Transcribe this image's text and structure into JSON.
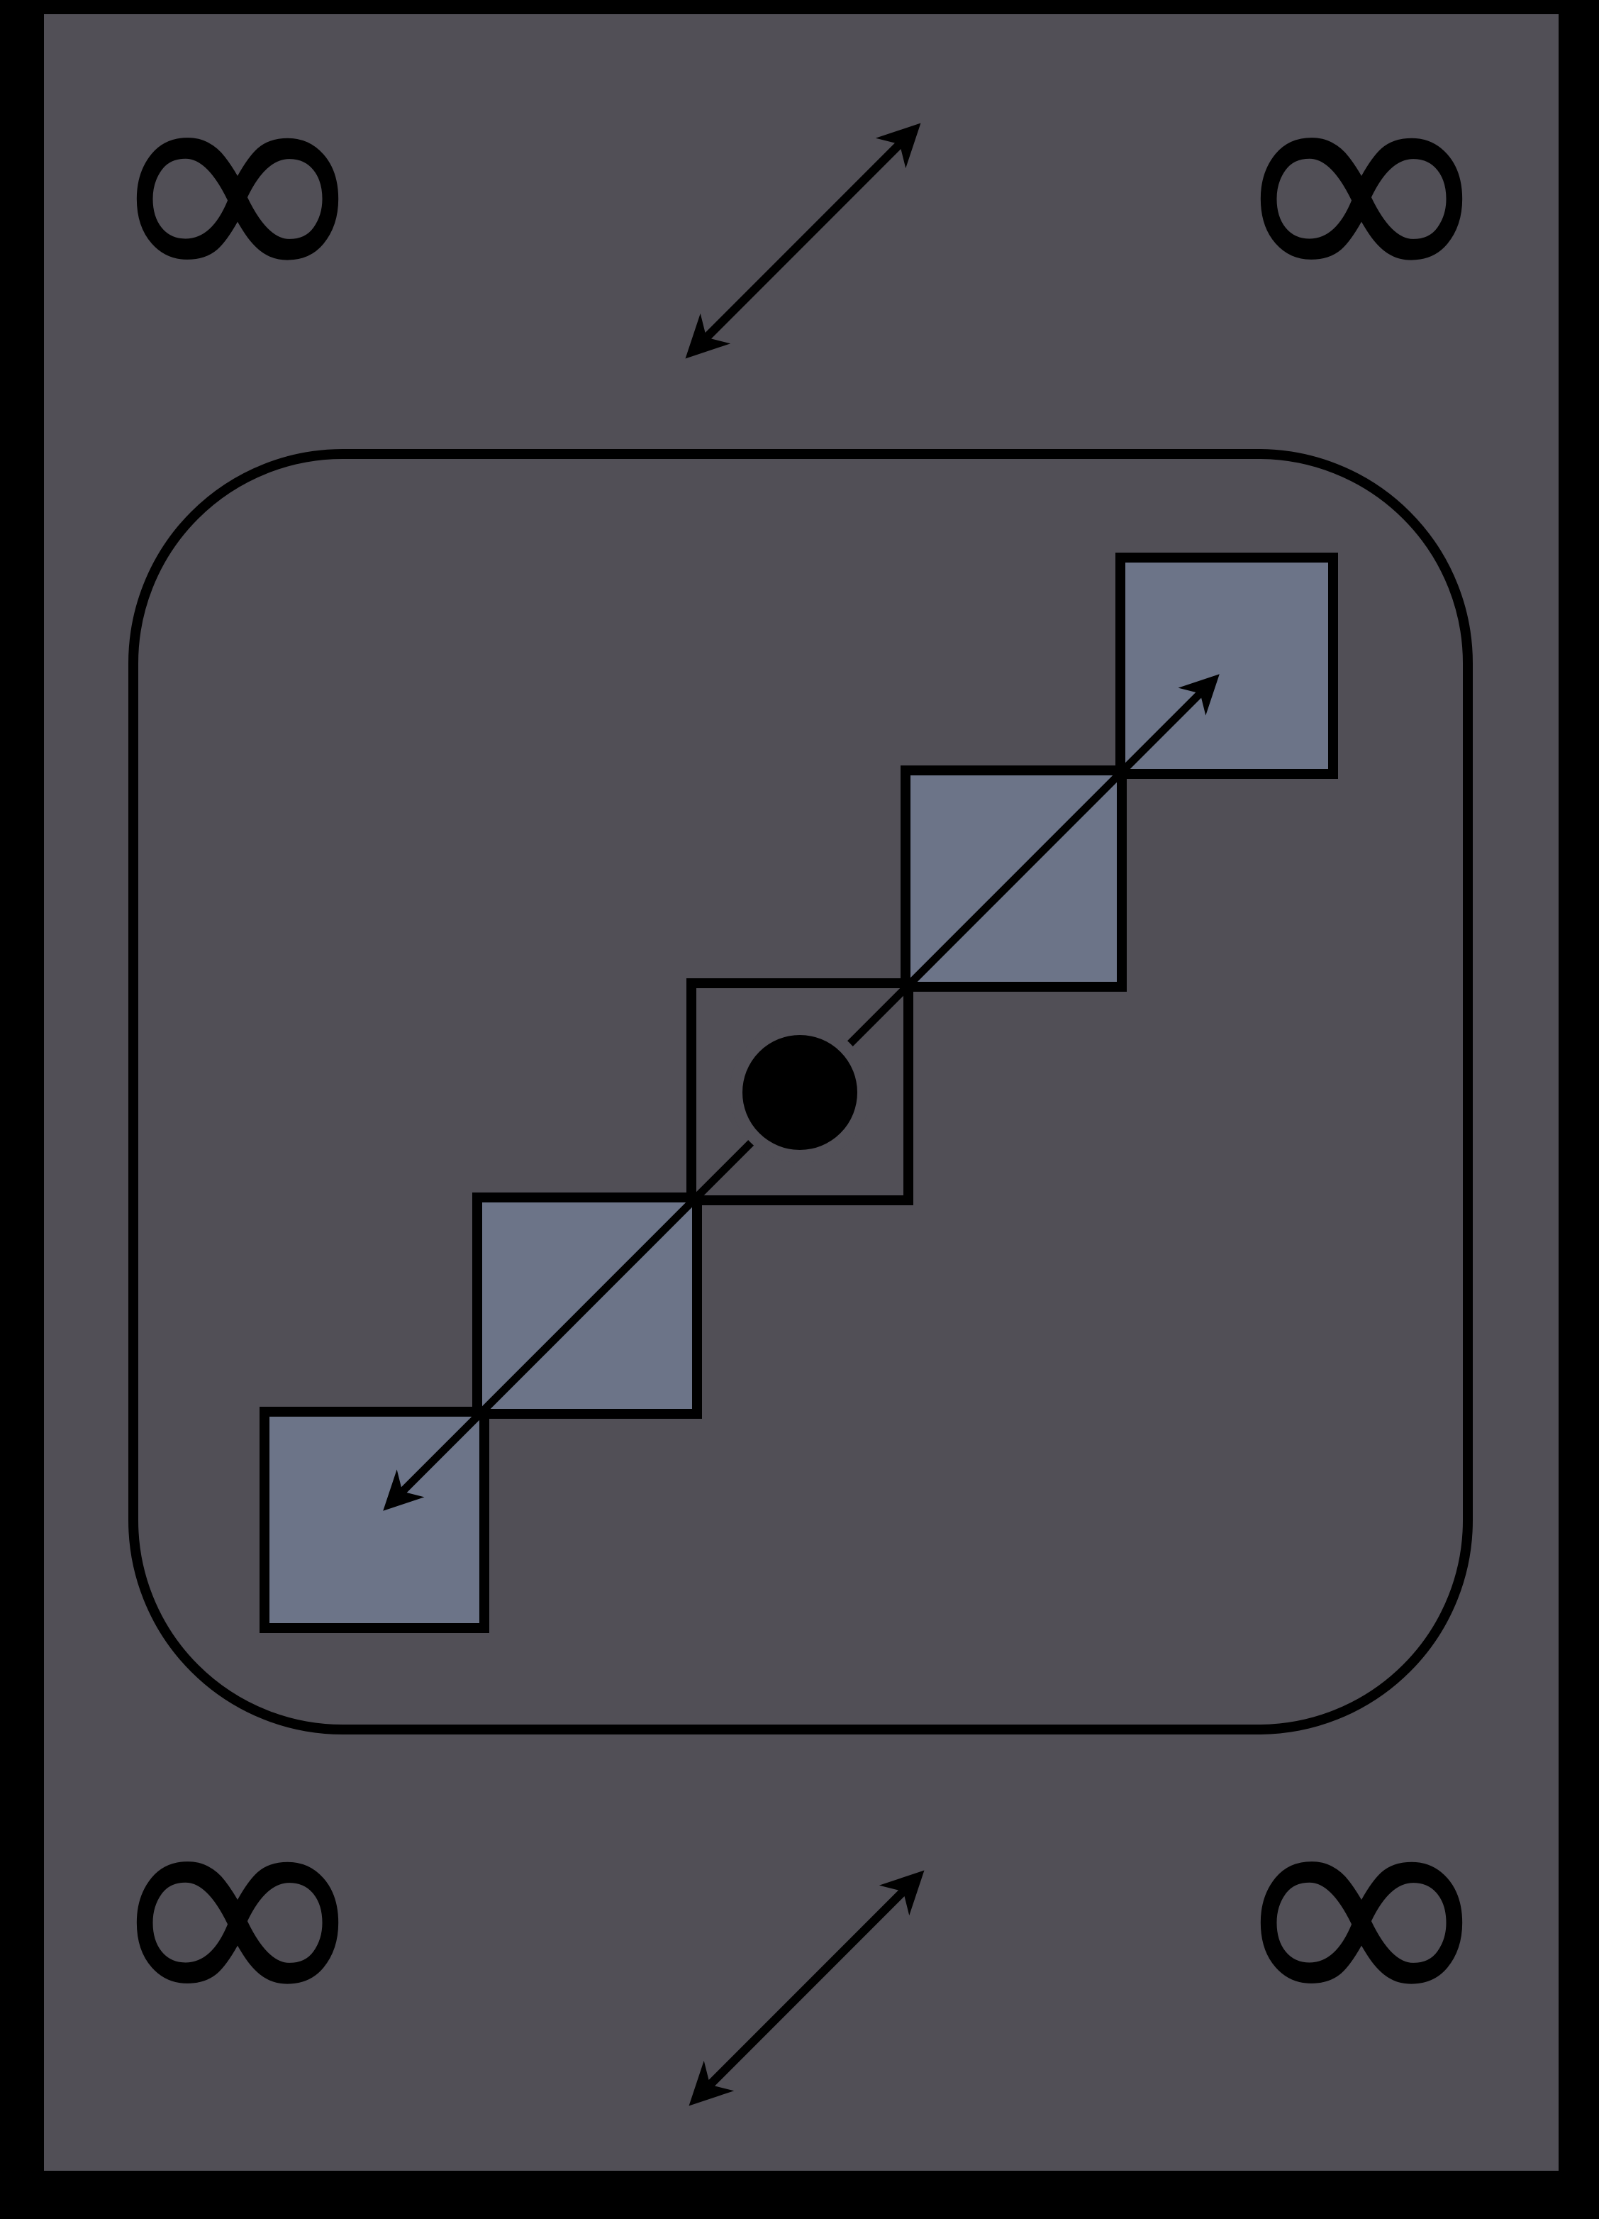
{
  "card": {
    "type": "game-card",
    "corner_symbol": "∞",
    "corner_icon": "infinity-icon",
    "direction_icon": "diagonal-double-arrow-icon",
    "center_icon": "diagonal-staircase-icon",
    "tile_count": 5,
    "center_tile_marker": "dot"
  },
  "colors": {
    "border": "#000000",
    "card_face": "#514f56",
    "tile_fill": "#6c7488",
    "stroke": "#000000"
  }
}
